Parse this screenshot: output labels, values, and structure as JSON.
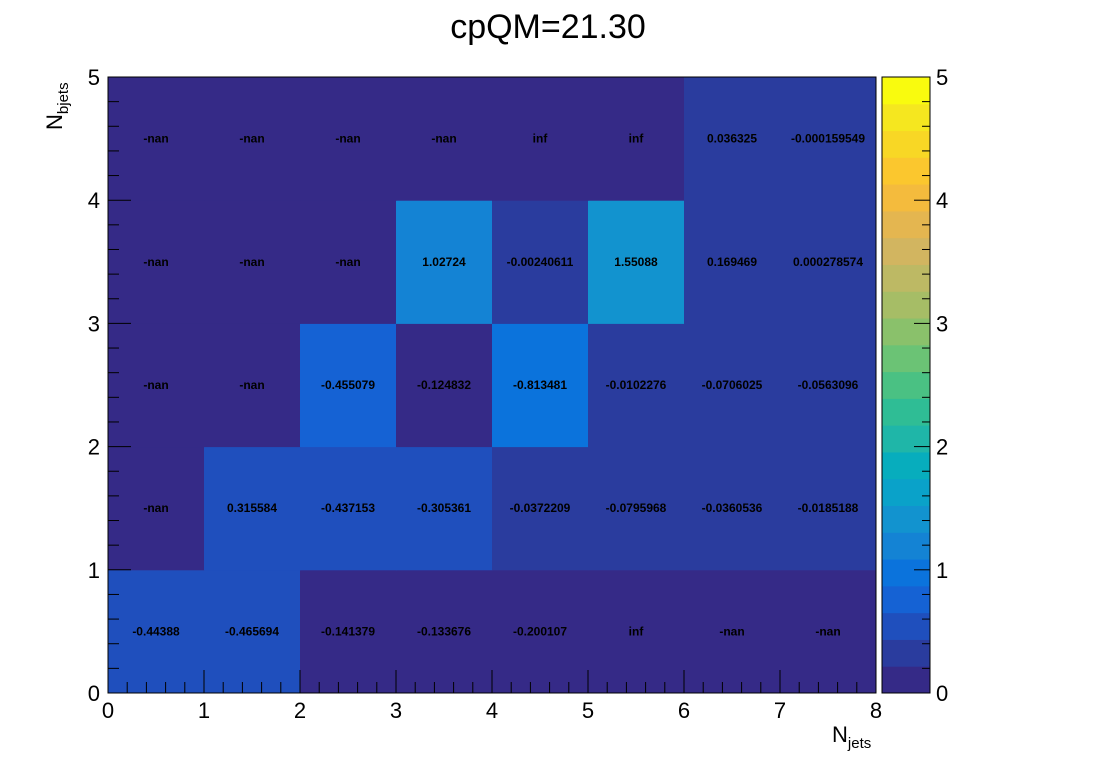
{
  "chart_data": {
    "type": "heatmap",
    "title": "cpQM=21.30",
    "xlabel": "N",
    "xlabel_sub": "jets",
    "ylabel": "N",
    "ylabel_sub": "bjets",
    "xlim": [
      0,
      8
    ],
    "ylim": [
      0,
      5
    ],
    "zlim": [
      0,
      5
    ],
    "x_ticks": [
      "0",
      "1",
      "2",
      "3",
      "4",
      "5",
      "6",
      "7",
      "8"
    ],
    "y_ticks": [
      "0",
      "1",
      "2",
      "3",
      "4",
      "5"
    ],
    "z_ticks": [
      "0",
      "1",
      "2",
      "3",
      "4",
      "5"
    ],
    "palette": [
      "#352a87",
      "#2a3c9e",
      "#1f4fbd",
      "#1562d4",
      "#0b73dc",
      "#1483d4",
      "#1293cf",
      "#0aa2c9",
      "#07adbd",
      "#1fb6a8",
      "#2fbd95",
      "#4ac183",
      "#6bc375",
      "#8ac16b",
      "#a6bd66",
      "#bdb964",
      "#d2b560",
      "#e4b650",
      "#f4bb3d",
      "#fbc72e",
      "#f8d725",
      "#f5e71f",
      "#f9fb0e"
    ],
    "cells": [
      {
        "x": 0,
        "y": 0,
        "label": "-0.44388",
        "z": 0.55
      },
      {
        "x": 1,
        "y": 0,
        "label": "-0.465694",
        "z": 0.53
      },
      {
        "x": 2,
        "y": 0,
        "label": "-0.141379",
        "z": 0.2
      },
      {
        "x": 3,
        "y": 0,
        "label": "-0.133676",
        "z": 0.2
      },
      {
        "x": 4,
        "y": 0,
        "label": "-0.200107",
        "z": 0.2
      },
      {
        "x": 5,
        "y": 0,
        "label": "inf",
        "z": 0
      },
      {
        "x": 6,
        "y": 0,
        "label": "-nan",
        "z": 0
      },
      {
        "x": 7,
        "y": 0,
        "label": "-nan",
        "z": 0
      },
      {
        "x": 0,
        "y": 1,
        "label": "-nan",
        "z": 0
      },
      {
        "x": 1,
        "y": 1,
        "label": "0.315584",
        "z": 0.55
      },
      {
        "x": 2,
        "y": 1,
        "label": "-0.437153",
        "z": 0.55
      },
      {
        "x": 3,
        "y": 1,
        "label": "-0.305361",
        "z": 0.55
      },
      {
        "x": 4,
        "y": 1,
        "label": "-0.0372209",
        "z": 0.3
      },
      {
        "x": 5,
        "y": 1,
        "label": "-0.0795968",
        "z": 0.3
      },
      {
        "x": 6,
        "y": 1,
        "label": "-0.0360536",
        "z": 0.3
      },
      {
        "x": 7,
        "y": 1,
        "label": "-0.0185188",
        "z": 0.3
      },
      {
        "x": 0,
        "y": 2,
        "label": "-nan",
        "z": 0
      },
      {
        "x": 1,
        "y": 2,
        "label": "-nan",
        "z": 0
      },
      {
        "x": 2,
        "y": 2,
        "label": "-0.455079",
        "z": 0.75
      },
      {
        "x": 3,
        "y": 2,
        "label": "-0.124832",
        "z": 0.2
      },
      {
        "x": 4,
        "y": 2,
        "label": "-0.813481",
        "z": 0.95
      },
      {
        "x": 5,
        "y": 2,
        "label": "-0.0102276",
        "z": 0.3
      },
      {
        "x": 6,
        "y": 2,
        "label": "-0.0706025",
        "z": 0.3
      },
      {
        "x": 7,
        "y": 2,
        "label": "-0.0563096",
        "z": 0.3
      },
      {
        "x": 0,
        "y": 3,
        "label": "-nan",
        "z": 0
      },
      {
        "x": 1,
        "y": 3,
        "label": "-nan",
        "z": 0
      },
      {
        "x": 2,
        "y": 3,
        "label": "-nan",
        "z": 0
      },
      {
        "x": 3,
        "y": 3,
        "label": "1.02724",
        "z": 1.3
      },
      {
        "x": 4,
        "y": 3,
        "label": "-0.00240611",
        "z": 0.3
      },
      {
        "x": 5,
        "y": 3,
        "label": "1.55088",
        "z": 1.5
      },
      {
        "x": 6,
        "y": 3,
        "label": "0.169469",
        "z": 0.3
      },
      {
        "x": 7,
        "y": 3,
        "label": "0.000278574",
        "z": 0.3
      },
      {
        "x": 0,
        "y": 4,
        "label": "-nan",
        "z": 0
      },
      {
        "x": 1,
        "y": 4,
        "label": "-nan",
        "z": 0
      },
      {
        "x": 2,
        "y": 4,
        "label": "-nan",
        "z": 0
      },
      {
        "x": 3,
        "y": 4,
        "label": "-nan",
        "z": 0
      },
      {
        "x": 4,
        "y": 4,
        "label": "inf",
        "z": 0
      },
      {
        "x": 5,
        "y": 4,
        "label": "inf",
        "z": 0
      },
      {
        "x": 6,
        "y": 4,
        "label": "0.036325",
        "z": 0.3
      },
      {
        "x": 7,
        "y": 4,
        "label": "-0.000159549",
        "z": 0.3
      }
    ]
  }
}
